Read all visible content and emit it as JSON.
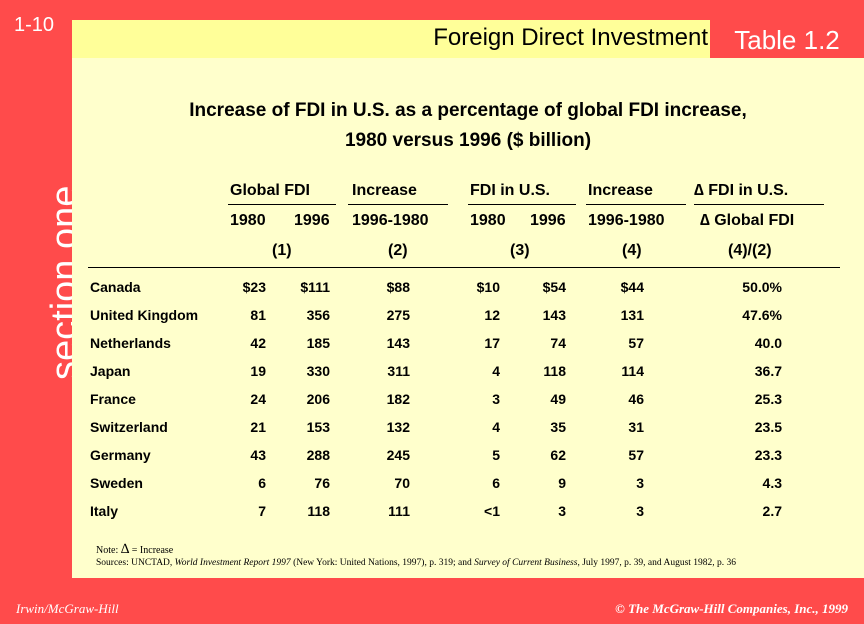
{
  "slide": {
    "number": "1-10",
    "section_word_1": "section",
    "section_word_2": "one",
    "header_title": "Foreign Direct Investment",
    "table_label": "Table 1.2",
    "footer_left": "Irwin/McGraw-Hill",
    "footer_right": "© The McGraw-Hill Companies, Inc., 1999"
  },
  "table": {
    "title_line1": "Increase of FDI in U.S. as a percentage of global FDI increase,",
    "title_line2": "1980 versus 1996 ($ billion)",
    "headers": {
      "global_fdi": "Global FDI",
      "increase1": "Increase",
      "fdi_us": "FDI in U.S.",
      "increase2": "Increase",
      "delta_fdi_us": "∆ FDI in U.S.",
      "y1980a": "1980",
      "y1996a": "1996",
      "range1": "1996-1980",
      "y1980b": "1980",
      "y1996b": "1996",
      "range2": "1996-1980",
      "delta_global": "∆ Global FDI",
      "n1": "(1)",
      "n2": "(2)",
      "n3": "(3)",
      "n4": "(4)",
      "n5": "(4)/(2)"
    },
    "rows": [
      {
        "country": "Canada",
        "g1980": "$23",
        "g1996": "$111",
        "inc": "$88",
        "u1980": "$10",
        "u1996": "$54",
        "uinc": "$44",
        "pct": "50.0%"
      },
      {
        "country": "United Kingdom",
        "g1980": "81",
        "g1996": "356",
        "inc": "275",
        "u1980": "12",
        "u1996": "143",
        "uinc": "131",
        "pct": "47.6%"
      },
      {
        "country": "Netherlands",
        "g1980": "42",
        "g1996": "185",
        "inc": "143",
        "u1980": "17",
        "u1996": "74",
        "uinc": "57",
        "pct": "40.0"
      },
      {
        "country": "Japan",
        "g1980": "19",
        "g1996": "330",
        "inc": "311",
        "u1980": "4",
        "u1996": "118",
        "uinc": "114",
        "pct": "36.7"
      },
      {
        "country": "France",
        "g1980": "24",
        "g1996": "206",
        "inc": "182",
        "u1980": "3",
        "u1996": "49",
        "uinc": "46",
        "pct": "25.3"
      },
      {
        "country": "Switzerland",
        "g1980": "21",
        "g1996": "153",
        "inc": "132",
        "u1980": "4",
        "u1996": "35",
        "uinc": "31",
        "pct": "23.5"
      },
      {
        "country": "Germany",
        "g1980": "43",
        "g1996": "288",
        "inc": "245",
        "u1980": "5",
        "u1996": "62",
        "uinc": "57",
        "pct": "23.3"
      },
      {
        "country": "Sweden",
        "g1980": "6",
        "g1996": "76",
        "inc": "70",
        "u1980": "6",
        "u1996": "9",
        "uinc": "3",
        "pct": "4.3"
      },
      {
        "country": "Italy",
        "g1980": "7",
        "g1996": "118",
        "inc": "111",
        "u1980": "<1",
        "u1996": "3",
        "uinc": "3",
        "pct": "2.7"
      }
    ],
    "note_prefix": "Note:",
    "note_delta": "∆",
    "note_text": "= Increase",
    "sources_1": "Sources: UNCTAD, ",
    "sources_2": "World Investment Report 1997",
    "sources_3": " (New York: United Nations, 1997), p. 319; and ",
    "sources_4": "Survey of Current Business",
    "sources_5": ", July 1997, p. 39, and August 1982, p. 36"
  },
  "colors": {
    "accent_red": "#ff4b4b",
    "header_yellow": "#ffff99",
    "content_cream": "#ffffcc"
  }
}
